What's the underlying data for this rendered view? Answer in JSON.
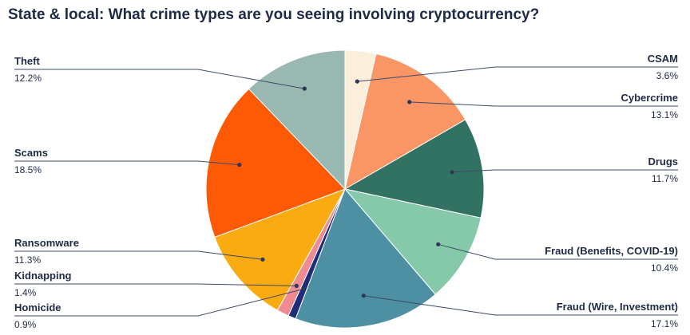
{
  "chart_data": {
    "type": "pie",
    "title": "State & local: What crime types are you seeing involving cryptocurrency?",
    "slices": [
      {
        "name": "CSAM",
        "value": 3.6,
        "label": "3.6%",
        "color": "#fbeedb",
        "side": "right"
      },
      {
        "name": "Cybercrime",
        "value": 13.1,
        "label": "13.1%",
        "color": "#fa9566",
        "side": "right"
      },
      {
        "name": "Drugs",
        "value": 11.7,
        "label": "11.7%",
        "color": "#327262",
        "side": "right"
      },
      {
        "name": "Fraud (Benefits, COVID-19)",
        "value": 10.4,
        "label": "10.4%",
        "color": "#86c9aa",
        "side": "right"
      },
      {
        "name": "Fraud (Wire, Investment)",
        "value": 17.1,
        "label": "17.1%",
        "color": "#4d8fa3",
        "side": "right"
      },
      {
        "name": "Homicide",
        "value": 0.9,
        "label": "0.9%",
        "color": "#1f2d78",
        "side": "left"
      },
      {
        "name": "Kidnapping",
        "value": 1.4,
        "label": "1.4%",
        "color": "#f08a93",
        "side": "left"
      },
      {
        "name": "Ransomware",
        "value": 11.3,
        "label": "11.3%",
        "color": "#fbab12",
        "side": "left"
      },
      {
        "name": "Scams",
        "value": 18.5,
        "label": "18.5%",
        "color": "#fe5a05",
        "side": "left"
      },
      {
        "name": "Theft",
        "value": 12.2,
        "label": "12.2%",
        "color": "#9ab8b2",
        "side": "left"
      }
    ],
    "start_position": "12 o'clock",
    "direction": "clockwise",
    "legend": "none (leader-line labels)"
  }
}
